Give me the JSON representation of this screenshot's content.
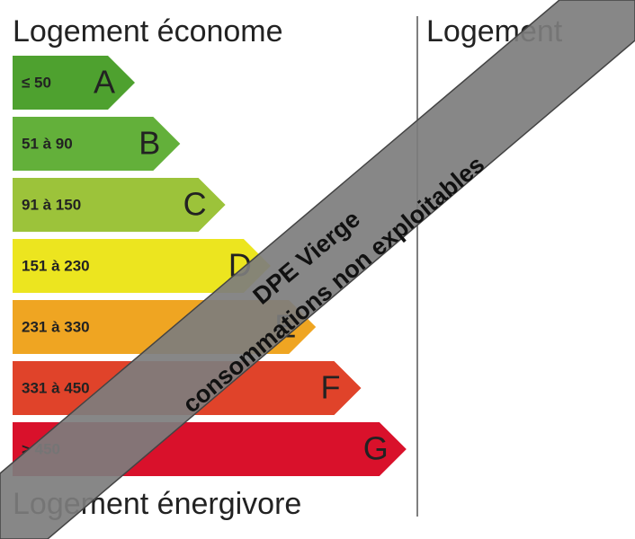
{
  "left_title": "Logement économe",
  "right_title": "Logement",
  "bottom_title": "Logement énergivore",
  "classes": [
    {
      "range": "≤ 50",
      "letter": "A",
      "color": "#4ea12f"
    },
    {
      "range": "51 à 90",
      "letter": "B",
      "color": "#63b03a"
    },
    {
      "range": "91 à 150",
      "letter": "C",
      "color": "#9cc33a"
    },
    {
      "range": "151 à 230",
      "letter": "D",
      "color": "#ece51f"
    },
    {
      "range": "231 à 330",
      "letter": "E",
      "color": "#efa522"
    },
    {
      "range": "331 à 450",
      "letter": "F",
      "color": "#e0432a"
    },
    {
      "range": "> 450",
      "letter": "G",
      "color": "#d9112b"
    }
  ],
  "banner": {
    "line1": "DPE Vierge",
    "line2": "consommations non exploitables"
  }
}
